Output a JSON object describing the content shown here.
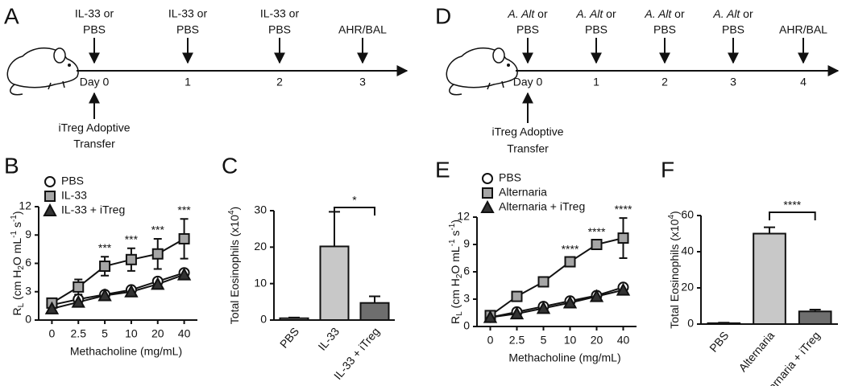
{
  "timelines": [
    {
      "panel": "A",
      "steps": [
        {
          "top": [
            "IL-33 or",
            "PBS"
          ],
          "day": "Day 0"
        },
        {
          "top": [
            "IL-33 or",
            "PBS"
          ],
          "day": "1"
        },
        {
          "top": [
            "IL-33 or",
            "PBS"
          ],
          "day": "2"
        },
        {
          "top": [
            "AHR/BAL"
          ],
          "day": "3"
        }
      ],
      "bottom": [
        "iTreg Adoptive",
        "Transfer"
      ]
    },
    {
      "panel": "D",
      "steps": [
        {
          "top": [
            [
              {
                "text": "A. Alt",
                "style": "italic"
              },
              {
                "text": " or"
              }
            ],
            "PBS"
          ],
          "day": "Day 0"
        },
        {
          "top": [
            [
              {
                "text": "A. Alt",
                "style": "italic"
              },
              {
                "text": " or"
              }
            ],
            "PBS"
          ],
          "day": "1"
        },
        {
          "top": [
            [
              {
                "text": "A. Alt",
                "style": "italic"
              },
              {
                "text": " or"
              }
            ],
            "PBS"
          ],
          "day": "2"
        },
        {
          "top": [
            [
              {
                "text": "A. Alt",
                "style": "italic"
              },
              {
                "text": " or"
              }
            ],
            "PBS"
          ],
          "day": "3"
        },
        {
          "top": [
            "AHR/BAL"
          ],
          "day": "4"
        }
      ],
      "bottom": [
        "iTreg Adoptive",
        "Transfer"
      ]
    }
  ],
  "chart_data": [
    {
      "panel": "B",
      "type": "line",
      "x_label": "Methacholine (mg/mL)",
      "y_label": [
        {
          "text": "R"
        },
        {
          "text": "L",
          "shift": "sub"
        },
        {
          "text": " (cm H"
        },
        {
          "text": "2",
          "shift": "sub"
        },
        {
          "text": "O mL"
        },
        {
          "text": "-1",
          "shift": "super"
        },
        {
          "text": " s"
        },
        {
          "text": "-1",
          "shift": "super"
        },
        {
          "text": ")"
        }
      ],
      "categories": [
        "0",
        "2.5",
        "5",
        "10",
        "20",
        "40"
      ],
      "ylim": [
        0,
        12
      ],
      "yticks": [
        0,
        3,
        6,
        9,
        12
      ],
      "error_direction": "both",
      "series": [
        {
          "name": "PBS",
          "marker": "circle",
          "color": "#ffffff",
          "values": [
            1.6,
            2.2,
            2.7,
            3.2,
            4.1,
            5.0
          ],
          "errors": [
            0.2,
            0.3,
            0.3,
            0.3,
            0.3,
            0.3
          ]
        },
        {
          "name": "IL-33",
          "marker": "square",
          "color": "#a6a6a6",
          "values": [
            1.8,
            3.5,
            5.7,
            6.4,
            7.0,
            8.6
          ],
          "errors": [
            0.3,
            0.8,
            1.0,
            1.2,
            1.6,
            2.1
          ]
        },
        {
          "name": "IL-33 + iTreg",
          "marker": "triangle",
          "color": "#333333",
          "values": [
            1.2,
            1.9,
            2.6,
            3.0,
            3.8,
            4.8
          ],
          "errors": [
            0.2,
            0.3,
            0.3,
            0.3,
            0.3,
            0.3
          ]
        }
      ],
      "significance": [
        null,
        null,
        "***",
        "***",
        "***",
        "***"
      ]
    },
    {
      "panel": "C",
      "type": "bar",
      "y_label": [
        {
          "text": "Total Eosinophils (x10"
        },
        {
          "text": "4",
          "shift": "super"
        },
        {
          "text": ")"
        }
      ],
      "categories": [
        "PBS",
        "IL-33",
        "IL-33 + iTreg"
      ],
      "values": [
        0.5,
        20.2,
        4.7
      ],
      "errors": [
        0.2,
        9.5,
        1.8
      ],
      "colors": [
        "#ffffff",
        "#c8c8c8",
        "#6e6e6e"
      ],
      "ylim": [
        0,
        30
      ],
      "yticks": [
        0,
        10,
        20,
        30
      ],
      "error_direction": "up",
      "brackets": [
        {
          "from": "IL-33",
          "to": "IL-33 + iTreg",
          "text": "*"
        }
      ]
    },
    {
      "panel": "E",
      "type": "line",
      "x_label": "Methacholine (mg/mL)",
      "y_label": [
        {
          "text": "R"
        },
        {
          "text": "L",
          "shift": "sub"
        },
        {
          "text": " (cm H"
        },
        {
          "text": "2",
          "shift": "sub"
        },
        {
          "text": "O mL"
        },
        {
          "text": "-1",
          "shift": "super"
        },
        {
          "text": " s"
        },
        {
          "text": "-1",
          "shift": "super"
        },
        {
          "text": ")"
        }
      ],
      "categories": [
        "0",
        "2.5",
        "5",
        "10",
        "20",
        "40"
      ],
      "ylim": [
        0,
        12
      ],
      "yticks": [
        0,
        3,
        6,
        9,
        12
      ],
      "error_direction": "both",
      "series": [
        {
          "name": "PBS",
          "marker": "circle",
          "color": "#ffffff",
          "values": [
            1.0,
            1.6,
            2.2,
            2.8,
            3.4,
            4.3
          ],
          "errors": [
            0.2,
            0.2,
            0.2,
            0.2,
            0.2,
            0.3
          ]
        },
        {
          "name": "Alternaria",
          "marker": "square",
          "color": "#a6a6a6",
          "values": [
            1.2,
            3.3,
            4.9,
            7.1,
            9.0,
            9.7
          ],
          "errors": [
            0.3,
            0.3,
            0.3,
            0.4,
            0.4,
            2.2
          ]
        },
        {
          "name": "Alternaria + iTreg",
          "marker": "triangle",
          "color": "#333333",
          "values": [
            1.0,
            1.4,
            2.0,
            2.6,
            3.3,
            4.0
          ],
          "errors": [
            0.2,
            0.2,
            0.2,
            0.2,
            0.2,
            0.2
          ]
        }
      ],
      "significance": [
        null,
        null,
        null,
        "****",
        "****",
        "****"
      ]
    },
    {
      "panel": "F",
      "type": "bar",
      "y_label": [
        {
          "text": "Total Eosinophils (x10"
        },
        {
          "text": "4",
          "shift": "super"
        },
        {
          "text": ")"
        }
      ],
      "categories": [
        "PBS",
        "Alternaria",
        "Alternaria + iTreg"
      ],
      "values": [
        0.5,
        50,
        7
      ],
      "errors": [
        0.3,
        3.5,
        1.0
      ],
      "colors": [
        "#ffffff",
        "#c8c8c8",
        "#6e6e6e"
      ],
      "ylim": [
        0,
        60
      ],
      "yticks": [
        0,
        20,
        40,
        60
      ],
      "error_direction": "up",
      "brackets": [
        {
          "from": "Alternaria",
          "to": "Alternaria + iTreg",
          "text": "****"
        }
      ]
    }
  ]
}
